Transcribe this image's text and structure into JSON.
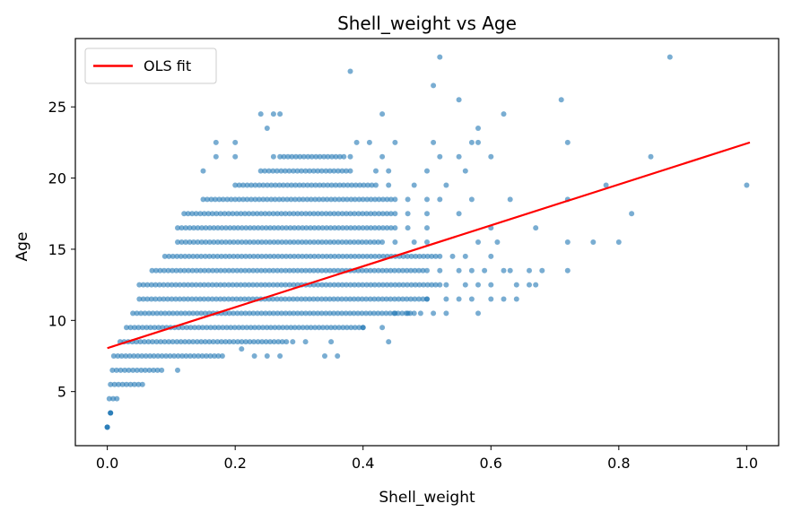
{
  "chart_data": {
    "type": "scatter",
    "title": "Shell_weight vs Age",
    "xlabel": "Shell_weight",
    "ylabel": "Age",
    "xlim": [
      -0.05,
      1.05
    ],
    "ylim": [
      1.2,
      29.8
    ],
    "xticks": [
      0.0,
      0.2,
      0.4,
      0.6,
      0.8,
      1.0
    ],
    "xtick_labels": [
      "0.0",
      "0.2",
      "0.4",
      "0.6",
      "0.8",
      "1.0"
    ],
    "yticks": [
      5,
      10,
      15,
      20,
      25
    ],
    "ytick_labels": [
      "5",
      "10",
      "15",
      "20",
      "25"
    ],
    "grid": false,
    "legend_position": "top-left",
    "legend": [
      "OLS fit"
    ],
    "point_color": "#1f77b4",
    "line_color": "#ff0000",
    "fit_line": {
      "name": "OLS fit",
      "x": [
        0.0,
        1.005
      ],
      "y": [
        8.05,
        22.5
      ]
    },
    "series": [
      {
        "bands": [
          {
            "y": 2.5,
            "x": [
              0.0,
              0.0
            ]
          },
          {
            "y": 3.5,
            "x": [
              0.005,
              0.005
            ]
          },
          {
            "y": 4.5,
            "x": [
              0.003,
              0.015
            ]
          },
          {
            "y": 5.5,
            "x": [
              0.005,
              0.055
            ]
          },
          {
            "y": 6.5,
            "x": [
              0.008,
              0.085
            ]
          },
          {
            "y": 7.5,
            "x": [
              0.01,
              0.18
            ]
          },
          {
            "y": 8.5,
            "x": [
              0.02,
              0.28
            ]
          },
          {
            "y": 9.5,
            "x": [
              0.03,
              0.4
            ]
          },
          {
            "y": 10.5,
            "x": [
              0.04,
              0.48
            ]
          },
          {
            "y": 11.5,
            "x": [
              0.05,
              0.5
            ]
          },
          {
            "y": 12.5,
            "x": [
              0.05,
              0.52
            ]
          },
          {
            "y": 13.5,
            "x": [
              0.07,
              0.5
            ]
          },
          {
            "y": 14.5,
            "x": [
              0.09,
              0.52
            ]
          },
          {
            "y": 15.5,
            "x": [
              0.11,
              0.43
            ]
          },
          {
            "y": 16.5,
            "x": [
              0.11,
              0.45
            ]
          },
          {
            "y": 17.5,
            "x": [
              0.12,
              0.45
            ]
          },
          {
            "y": 18.5,
            "x": [
              0.15,
              0.45
            ]
          },
          {
            "y": 19.5,
            "x": [
              0.2,
              0.42
            ]
          },
          {
            "y": 20.5,
            "x": [
              0.24,
              0.38
            ]
          },
          {
            "y": 21.5,
            "x": [
              0.27,
              0.37
            ]
          }
        ],
        "points": [
          [
            0.0,
            2.5
          ],
          [
            0.005,
            3.5
          ],
          [
            0.11,
            6.5
          ],
          [
            0.25,
            7.5
          ],
          [
            0.27,
            7.5
          ],
          [
            0.34,
            7.5
          ],
          [
            0.36,
            7.5
          ],
          [
            0.44,
            8.5
          ],
          [
            0.21,
            8.0
          ],
          [
            0.23,
            7.5
          ],
          [
            0.29,
            8.5
          ],
          [
            0.31,
            8.5
          ],
          [
            0.35,
            8.5
          ],
          [
            0.4,
            9.5
          ],
          [
            0.43,
            9.5
          ],
          [
            0.45,
            10.5
          ],
          [
            0.47,
            10.5
          ],
          [
            0.49,
            10.5
          ],
          [
            0.51,
            10.5
          ],
          [
            0.53,
            10.5
          ],
          [
            0.58,
            10.5
          ],
          [
            0.5,
            11.5
          ],
          [
            0.53,
            11.5
          ],
          [
            0.55,
            11.5
          ],
          [
            0.57,
            11.5
          ],
          [
            0.6,
            11.5
          ],
          [
            0.62,
            11.5
          ],
          [
            0.64,
            11.5
          ],
          [
            0.53,
            12.5
          ],
          [
            0.56,
            12.5
          ],
          [
            0.58,
            12.5
          ],
          [
            0.6,
            12.5
          ],
          [
            0.64,
            12.5
          ],
          [
            0.66,
            12.5
          ],
          [
            0.67,
            12.5
          ],
          [
            0.52,
            13.5
          ],
          [
            0.55,
            13.5
          ],
          [
            0.57,
            13.5
          ],
          [
            0.59,
            13.5
          ],
          [
            0.62,
            13.5
          ],
          [
            0.63,
            13.5
          ],
          [
            0.66,
            13.5
          ],
          [
            0.68,
            13.5
          ],
          [
            0.72,
            13.5
          ],
          [
            0.54,
            14.5
          ],
          [
            0.56,
            14.5
          ],
          [
            0.6,
            14.5
          ],
          [
            0.45,
            15.5
          ],
          [
            0.48,
            15.5
          ],
          [
            0.5,
            15.5
          ],
          [
            0.58,
            15.5
          ],
          [
            0.61,
            15.5
          ],
          [
            0.72,
            15.5
          ],
          [
            0.76,
            15.5
          ],
          [
            0.8,
            15.5
          ],
          [
            0.47,
            16.5
          ],
          [
            0.5,
            16.5
          ],
          [
            0.6,
            16.5
          ],
          [
            0.67,
            16.5
          ],
          [
            0.47,
            17.5
          ],
          [
            0.5,
            17.5
          ],
          [
            0.55,
            17.5
          ],
          [
            0.82,
            17.5
          ],
          [
            0.47,
            18.5
          ],
          [
            0.5,
            18.5
          ],
          [
            0.52,
            18.5
          ],
          [
            0.57,
            18.5
          ],
          [
            0.63,
            18.5
          ],
          [
            0.72,
            18.5
          ],
          [
            0.44,
            19.5
          ],
          [
            0.48,
            19.5
          ],
          [
            0.53,
            19.5
          ],
          [
            0.78,
            19.5
          ],
          [
            1.0,
            19.5
          ],
          [
            0.15,
            20.5
          ],
          [
            0.42,
            20.5
          ],
          [
            0.44,
            20.5
          ],
          [
            0.5,
            20.5
          ],
          [
            0.56,
            20.5
          ],
          [
            0.17,
            21.5
          ],
          [
            0.2,
            21.5
          ],
          [
            0.26,
            21.5
          ],
          [
            0.38,
            21.5
          ],
          [
            0.43,
            21.5
          ],
          [
            0.52,
            21.5
          ],
          [
            0.55,
            21.5
          ],
          [
            0.6,
            21.5
          ],
          [
            0.85,
            21.5
          ],
          [
            0.17,
            22.5
          ],
          [
            0.2,
            22.5
          ],
          [
            0.39,
            22.5
          ],
          [
            0.41,
            22.5
          ],
          [
            0.45,
            22.5
          ],
          [
            0.51,
            22.5
          ],
          [
            0.57,
            22.5
          ],
          [
            0.58,
            22.5
          ],
          [
            0.72,
            22.5
          ],
          [
            0.25,
            23.5
          ],
          [
            0.58,
            23.5
          ],
          [
            0.24,
            24.5
          ],
          [
            0.26,
            24.5
          ],
          [
            0.27,
            24.5
          ],
          [
            0.43,
            24.5
          ],
          [
            0.62,
            24.5
          ],
          [
            0.55,
            25.5
          ],
          [
            0.71,
            25.5
          ],
          [
            0.51,
            26.5
          ],
          [
            0.38,
            27.5
          ],
          [
            0.52,
            28.5
          ],
          [
            0.88,
            28.5
          ]
        ]
      }
    ]
  }
}
